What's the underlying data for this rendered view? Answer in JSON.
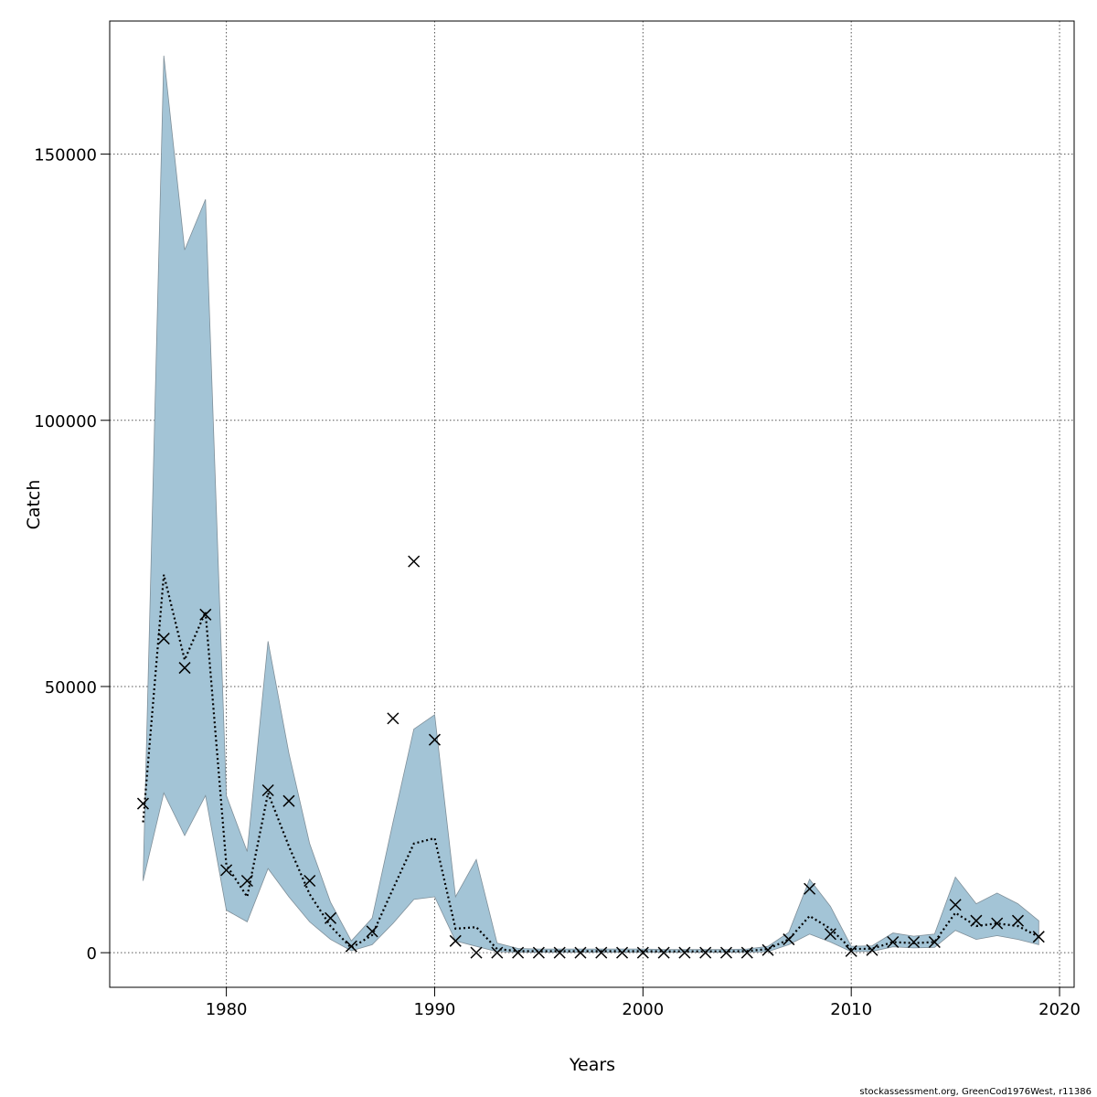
{
  "chart_data": {
    "type": "line",
    "title": "",
    "xlabel": "Years",
    "ylabel": "Catch",
    "xlim": [
      1974.4,
      2020.7
    ],
    "ylim": [
      -6500,
      175000
    ],
    "xticks": [
      1980,
      1990,
      2000,
      2010,
      2020
    ],
    "yticks": [
      0,
      50000,
      100000,
      150000
    ],
    "grid": true,
    "legend": "none",
    "colors": {
      "band": "#a3c4d6",
      "band_edge": "#7f8f99",
      "line": "#000000",
      "grid": "#555555"
    },
    "x": [
      1976,
      1977,
      1978,
      1979,
      1980,
      1981,
      1982,
      1983,
      1984,
      1985,
      1986,
      1987,
      1988,
      1989,
      1990,
      1991,
      1992,
      1993,
      1994,
      1995,
      1996,
      1997,
      1998,
      1999,
      2000,
      2001,
      2002,
      2003,
      2004,
      2005,
      2006,
      2007,
      2008,
      2009,
      2010,
      2011,
      2012,
      2013,
      2014,
      2015,
      2016,
      2017,
      2018,
      2019
    ],
    "series": [
      {
        "role": "band",
        "upper": [
          13500,
          168500,
          132000,
          141500,
          29500,
          19000,
          58500,
          37500,
          20500,
          9500,
          2200,
          6500,
          24500,
          42000,
          44700,
          10500,
          17500,
          1800,
          800,
          700,
          700,
          700,
          700,
          700,
          700,
          600,
          600,
          600,
          600,
          700,
          1200,
          3800,
          13800,
          8700,
          1200,
          1300,
          3700,
          3100,
          3500,
          14200,
          9200,
          11200,
          9200,
          6000
        ],
        "lower": [
          13500,
          30000,
          22000,
          29500,
          8000,
          5800,
          15800,
          10500,
          5800,
          2500,
          350,
          1500,
          5500,
          10000,
          10500,
          2200,
          1200,
          200,
          80,
          80,
          80,
          80,
          80,
          80,
          80,
          80,
          80,
          80,
          80,
          80,
          200,
          1500,
          3500,
          2000,
          200,
          250,
          1100,
          900,
          1000,
          4200,
          2500,
          3200,
          2500,
          1500
        ]
      },
      {
        "role": "estimate",
        "values": [
          24500,
          71000,
          55000,
          64000,
          16500,
          10500,
          30000,
          20000,
          11000,
          5000,
          900,
          3300,
          12000,
          20500,
          21500,
          4500,
          4800,
          700,
          300,
          280,
          280,
          280,
          280,
          280,
          280,
          250,
          250,
          250,
          250,
          300,
          700,
          2500,
          6900,
          4500,
          700,
          750,
          2000,
          1800,
          2000,
          7500,
          5000,
          5500,
          5000,
          3000
        ]
      },
      {
        "role": "observed",
        "values": [
          28000,
          59000,
          53500,
          63500,
          15500,
          13500,
          30500,
          28500,
          13500,
          6500,
          1200,
          4000,
          44000,
          73500,
          40000,
          2200,
          0,
          0,
          0,
          0,
          0,
          0,
          0,
          0,
          0,
          0,
          0,
          0,
          0,
          0,
          500,
          2500,
          12000,
          3500,
          300,
          500,
          2000,
          2000,
          2000,
          9000,
          6000,
          5500,
          6000,
          3000
        ]
      }
    ]
  },
  "footer": "stockassessment.org, GreenCod1976West, r11386"
}
